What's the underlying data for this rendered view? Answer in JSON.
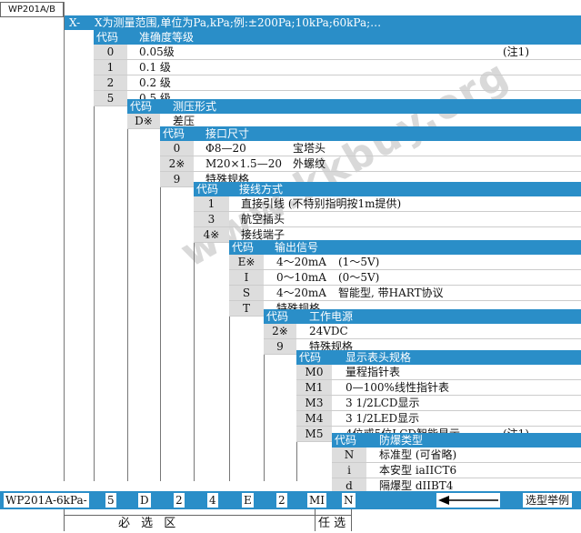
{
  "model_box": "WP201A/B",
  "top": {
    "code": "X-",
    "desc": "X为测量范围,单位为Pa,kPa;例:±200Pa;10kPa;60kPa;…"
  },
  "code_label": "代码",
  "sections": {
    "accuracy": {
      "title": "准确度等级",
      "rows": [
        {
          "code": "0",
          "desc": "0.05级",
          "note": "(注1)"
        },
        {
          "code": "1",
          "desc": "0.1 级",
          "note": ""
        },
        {
          "code": "2",
          "desc": "0.2 级",
          "note": ""
        },
        {
          "code": "5",
          "desc": "0.5 级",
          "note": ""
        }
      ]
    },
    "pressure": {
      "title": "测压形式",
      "rows": [
        {
          "code": "D※",
          "desc": "差压"
        }
      ]
    },
    "port": {
      "title": "接口尺寸",
      "rows": [
        {
          "code": "0",
          "desc": "Φ8—20",
          "desc2": "宝塔头"
        },
        {
          "code": "2※",
          "desc": "M20×1.5—20",
          "desc2": "外螺纹"
        },
        {
          "code": "9",
          "desc": "特殊规格",
          "desc2": ""
        }
      ]
    },
    "wiring": {
      "title": "接线方式",
      "rows": [
        {
          "code": "1",
          "desc": "直接引线 (不特别指明按1m提供)"
        },
        {
          "code": "3",
          "desc": "航空插头"
        },
        {
          "code": "4※",
          "desc": "接线端子"
        }
      ]
    },
    "output": {
      "title": "输出信号",
      "rows": [
        {
          "code": "E※",
          "desc": "4～20mA",
          "desc2": "(1～5V)"
        },
        {
          "code": "I",
          "desc": "0～10mA",
          "desc2": "(0～5V)"
        },
        {
          "code": "S",
          "desc": "4～20mA",
          "desc2": "智能型, 带HART协议"
        },
        {
          "code": "T",
          "desc": "特殊规格",
          "desc2": ""
        }
      ]
    },
    "power": {
      "title": "工作电源",
      "rows": [
        {
          "code": "2※",
          "desc": "24VDC"
        },
        {
          "code": "9",
          "desc": "特殊规格"
        }
      ]
    },
    "display": {
      "title": "显示表头规格",
      "rows": [
        {
          "code": "M0",
          "desc": "量程指针表",
          "note": ""
        },
        {
          "code": "M1",
          "desc": "0—100%线性指针表",
          "note": ""
        },
        {
          "code": "M3",
          "desc": "3 1/2LCD显示",
          "note": ""
        },
        {
          "code": "M4",
          "desc": "3 1/2LED显示",
          "note": ""
        },
        {
          "code": "M5",
          "desc": "4位或5位LCD智能显示",
          "note": "(注1)"
        }
      ]
    },
    "explosion": {
      "title": "防爆类型",
      "rows": [
        {
          "code": "N",
          "desc": "标准型 (可省略)"
        },
        {
          "code": "i",
          "desc": "本安型  iaIICT6"
        },
        {
          "code": "d",
          "desc": "隔爆型  dIIBT4"
        }
      ]
    }
  },
  "example": {
    "prefix": "WP201A-6kPa-",
    "codes": [
      "5",
      "D",
      "2",
      "4",
      "E",
      "2",
      "MI",
      "N"
    ],
    "label": "选型举例"
  },
  "footer": {
    "required": "必 选 区",
    "optional": "任 选"
  },
  "watermark": "www.kkbuy.org"
}
